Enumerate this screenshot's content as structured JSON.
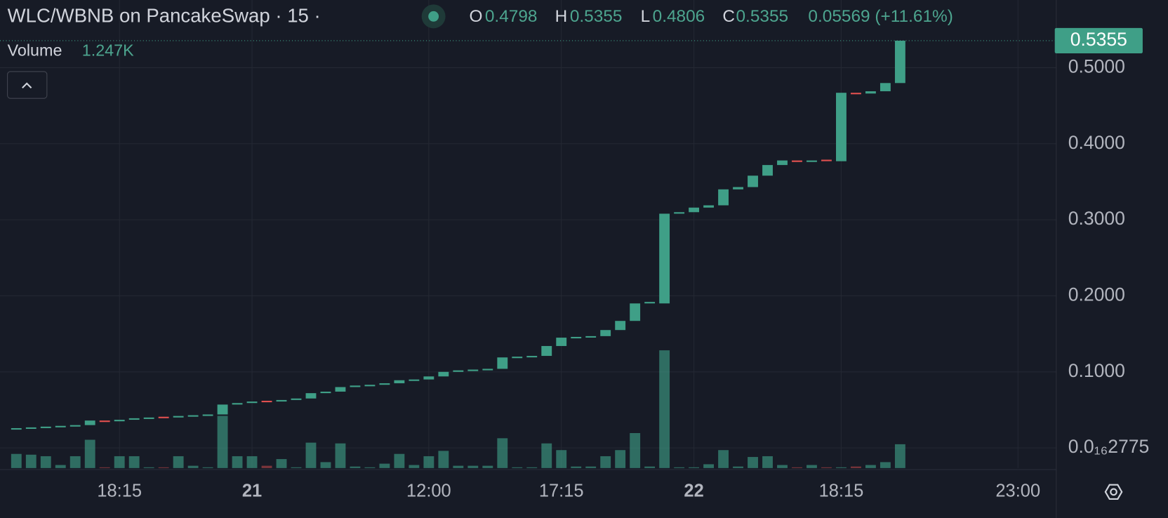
{
  "chart_data": {
    "type": "candlestick",
    "title": "WLC/WBNB on PancakeSwap · 15 ·",
    "legend": {
      "o": "O",
      "open": "0.4798",
      "h": "H",
      "high": "0.5355",
      "l": "L",
      "low": "0.4806",
      "c": "C",
      "close": "0.5355",
      "change": "0.05569 (+11.61%)"
    },
    "up_color": "#3f9f87",
    "down_color": "#e0504f",
    "open": [
      0.025,
      0.026,
      0.027,
      0.028,
      0.029,
      0.03,
      0.036,
      0.035,
      0.037,
      0.039,
      0.041,
      0.04,
      0.042,
      0.043,
      0.044,
      0.057,
      0.059,
      0.062,
      0.061,
      0.063,
      0.065,
      0.072,
      0.074,
      0.08,
      0.082,
      0.083,
      0.085,
      0.089,
      0.09,
      0.094,
      0.1,
      0.102,
      0.103,
      0.104,
      0.119,
      0.12,
      0.121,
      0.134,
      0.145,
      0.146,
      0.147,
      0.155,
      0.167,
      0.19,
      0.19,
      0.308,
      0.31,
      0.316,
      0.319,
      0.34,
      0.343,
      0.358,
      0.372,
      0.378,
      0.376,
      0.379,
      0.377,
      0.467,
      0.466,
      0.469,
      0.4798
    ],
    "close": [
      0.026,
      0.027,
      0.028,
      0.029,
      0.03,
      0.036,
      0.035,
      0.037,
      0.039,
      0.04,
      0.04,
      0.042,
      0.043,
      0.044,
      0.057,
      0.059,
      0.061,
      0.061,
      0.063,
      0.065,
      0.072,
      0.074,
      0.08,
      0.082,
      0.083,
      0.085,
      0.089,
      0.09,
      0.094,
      0.1,
      0.102,
      0.103,
      0.104,
      0.119,
      0.12,
      0.121,
      0.134,
      0.145,
      0.146,
      0.147,
      0.155,
      0.167,
      0.19,
      0.192,
      0.308,
      0.31,
      0.316,
      0.319,
      0.34,
      0.343,
      0.358,
      0.372,
      0.378,
      0.376,
      0.378,
      0.378,
      0.467,
      0.466,
      0.469,
      0.4798,
      0.5355
    ],
    "volume": {
      "label": "Volume",
      "value_label": "1.247K",
      "values": [
        740,
        700,
        620,
        160,
        620,
        1480,
        40,
        620,
        620,
        40,
        40,
        620,
        120,
        40,
        2730,
        620,
        620,
        120,
        470,
        40,
        1330,
        310,
        1290,
        80,
        40,
        230,
        740,
        160,
        620,
        900,
        120,
        120,
        120,
        1560,
        40,
        40,
        1290,
        940,
        80,
        80,
        620,
        940,
        1830,
        80,
        6160,
        40,
        40,
        200,
        940,
        80,
        580,
        620,
        160,
        40,
        160,
        40,
        40,
        80,
        160,
        310,
        1247
      ]
    },
    "ylim": [
      -0.0265,
      0.589
    ],
    "yticks": [
      {
        "value": 2.775e-17,
        "label": "0.0₁₆2775"
      },
      {
        "value": 0.1,
        "label": "0.1000"
      },
      {
        "value": 0.2,
        "label": "0.2000"
      },
      {
        "value": 0.3,
        "label": "0.3000"
      },
      {
        "value": 0.4,
        "label": "0.4000"
      },
      {
        "value": 0.5,
        "label": "0.5000"
      }
    ],
    "xlim": [
      -1.11,
      70.6
    ],
    "xticks": [
      {
        "value": 7,
        "label": "18:15"
      },
      {
        "value": 16,
        "label": "21"
      },
      {
        "value": 28,
        "label": "12:00"
      },
      {
        "value": 37,
        "label": "17:15"
      },
      {
        "value": 46,
        "label": "22"
      },
      {
        "value": 56,
        "label": "18:15"
      },
      {
        "value": 68,
        "label": "23:00"
      }
    ],
    "grid": true
  }
}
